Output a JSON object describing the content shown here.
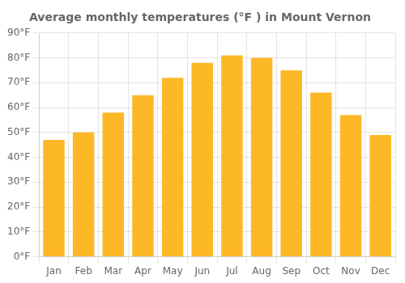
{
  "chart_data": {
    "type": "bar",
    "title": "Average monthly temperatures (°F ) in Mount Vernon",
    "categories": [
      "Jan",
      "Feb",
      "Mar",
      "Apr",
      "May",
      "Jun",
      "Jul",
      "Aug",
      "Sep",
      "Oct",
      "Nov",
      "Dec"
    ],
    "values": [
      47,
      50,
      58,
      65,
      72,
      78,
      81,
      80,
      75,
      66,
      57,
      49
    ],
    "color": "#FDB827",
    "ylim": [
      0,
      90
    ],
    "yticks": [
      {
        "value": 0,
        "label": "0°F"
      },
      {
        "value": 10,
        "label": "10°F"
      },
      {
        "value": 20,
        "label": "20°F"
      },
      {
        "value": 30,
        "label": "30°F"
      },
      {
        "value": 40,
        "label": "40°F"
      },
      {
        "value": 50,
        "label": "50°F"
      },
      {
        "value": 60,
        "label": "60°F"
      },
      {
        "value": 70,
        "label": "70°F"
      },
      {
        "value": 80,
        "label": "80°F"
      },
      {
        "value": 90,
        "label": "90°F"
      }
    ],
    "grid": true
  }
}
